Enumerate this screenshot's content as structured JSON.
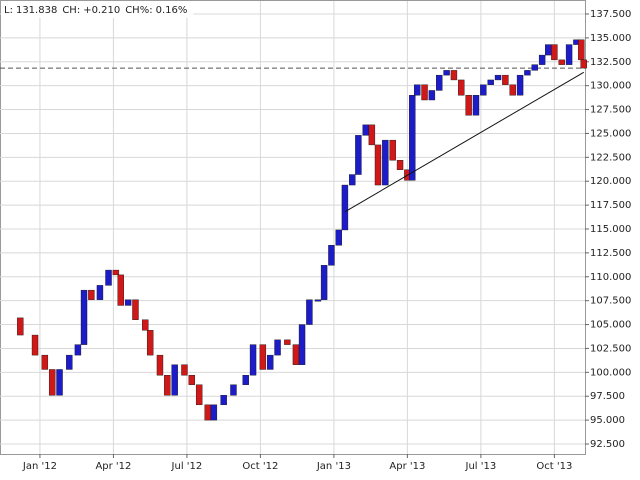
{
  "chart_data": {
    "type": "price-bars",
    "quote": [
      {
        "label": "L:",
        "value": 131.838
      },
      {
        "label": "CH:",
        "value": "+0.210"
      },
      {
        "label": "CH%:",
        "value": "0.16%"
      }
    ],
    "x": [
      -1.63,
      -0.8,
      -0.2,
      0.2,
      0.5,
      0.8,
      1.2,
      1.55,
      1.8,
      2.1,
      2.45,
      2.8,
      3.1,
      3.3,
      3.6,
      3.9,
      4.3,
      4.5,
      4.9,
      5.2,
      5.5,
      5.9,
      6.2,
      6.5,
      6.85,
      7.1,
      7.5,
      7.9,
      8.4,
      8.7,
      9.1,
      9.4,
      9.7,
      10.1,
      10.45,
      10.7,
      11.0,
      11.35,
      11.6,
      11.9,
      12.2,
      12.45,
      12.75,
      13.0,
      13.3,
      13.55,
      13.8,
      14.1,
      14.4,
      14.7,
      15.0,
      15.2,
      15.4,
      15.7,
      16.0,
      16.3,
      16.6,
      16.9,
      17.2,
      17.5,
      17.8,
      18.1,
      18.4,
      18.7,
      19.0,
      19.3,
      19.6,
      19.9,
      20.2,
      20.5,
      20.75,
      21.0,
      21.3,
      21.6,
      21.9,
      22.1,
      22.2
    ],
    "values": [
      105.7,
      103.9,
      101.8,
      100.3,
      97.6,
      100.3,
      101.8,
      102.9,
      108.6,
      107.6,
      109.1,
      110.7,
      110.2,
      107.0,
      107.6,
      105.5,
      104.4,
      101.8,
      99.7,
      97.6,
      100.8,
      99.7,
      98.7,
      96.6,
      95.0,
      96.6,
      97.6,
      98.7,
      99.7,
      102.9,
      100.3,
      101.8,
      103.4,
      102.9,
      100.8,
      105.0,
      107.6,
      107.6,
      111.2,
      113.3,
      114.9,
      119.6,
      120.7,
      124.8,
      125.9,
      123.8,
      119.6,
      124.3,
      122.2,
      121.2,
      120.1,
      129.0,
      130.1,
      128.5,
      129.5,
      131.1,
      131.6,
      130.6,
      129.0,
      126.9,
      129.0,
      130.1,
      130.6,
      131.1,
      130.1,
      129.0,
      131.1,
      131.6,
      132.2,
      133.2,
      134.3,
      132.7,
      132.2,
      134.3,
      134.8,
      132.7,
      131.838
    ],
    "up_color": "#1c1cc8",
    "down_color": "#d01818",
    "trendline": {
      "x": [
        12.45,
        22.2
      ],
      "y": [
        116.8,
        131.4
      ]
    },
    "xlim": [
      -1.63,
      22.25
    ],
    "xticks": [
      {
        "value": 0,
        "label": "Jan '12"
      },
      {
        "value": 3,
        "label": "Apr '12"
      },
      {
        "value": 6,
        "label": "Jul '12"
      },
      {
        "value": 9,
        "label": "Oct '12"
      },
      {
        "value": 12,
        "label": "Jan '13"
      },
      {
        "value": 15,
        "label": "Apr '13"
      },
      {
        "value": 18,
        "label": "Jul '13"
      },
      {
        "value": 21,
        "label": "Oct '13"
      }
    ],
    "ylim": [
      92.5,
      137.5
    ],
    "yticks": [
      {
        "value": 92.5,
        "label": "92.500"
      },
      {
        "value": 95,
        "label": "95.000"
      },
      {
        "value": 97.5,
        "label": "97.500"
      },
      {
        "value": 100,
        "label": "100.000"
      },
      {
        "value": 102.5,
        "label": "102.500"
      },
      {
        "value": 105,
        "label": "105.000"
      },
      {
        "value": 107.5,
        "label": "107.500"
      },
      {
        "value": 110,
        "label": "110.000"
      },
      {
        "value": 112.5,
        "label": "112.500"
      },
      {
        "value": 115,
        "label": "115.000"
      },
      {
        "value": 117.5,
        "label": "117.500"
      },
      {
        "value": 120,
        "label": "120.000"
      },
      {
        "value": 122.5,
        "label": "122.500"
      },
      {
        "value": 125,
        "label": "125.000"
      },
      {
        "value": 127.5,
        "label": "127.500"
      },
      {
        "value": 130,
        "label": "130.000"
      },
      {
        "value": 132.5,
        "label": "132.500"
      },
      {
        "value": 135,
        "label": "135.000"
      },
      {
        "value": 137.5,
        "label": "137.500"
      }
    ],
    "grid": true
  }
}
